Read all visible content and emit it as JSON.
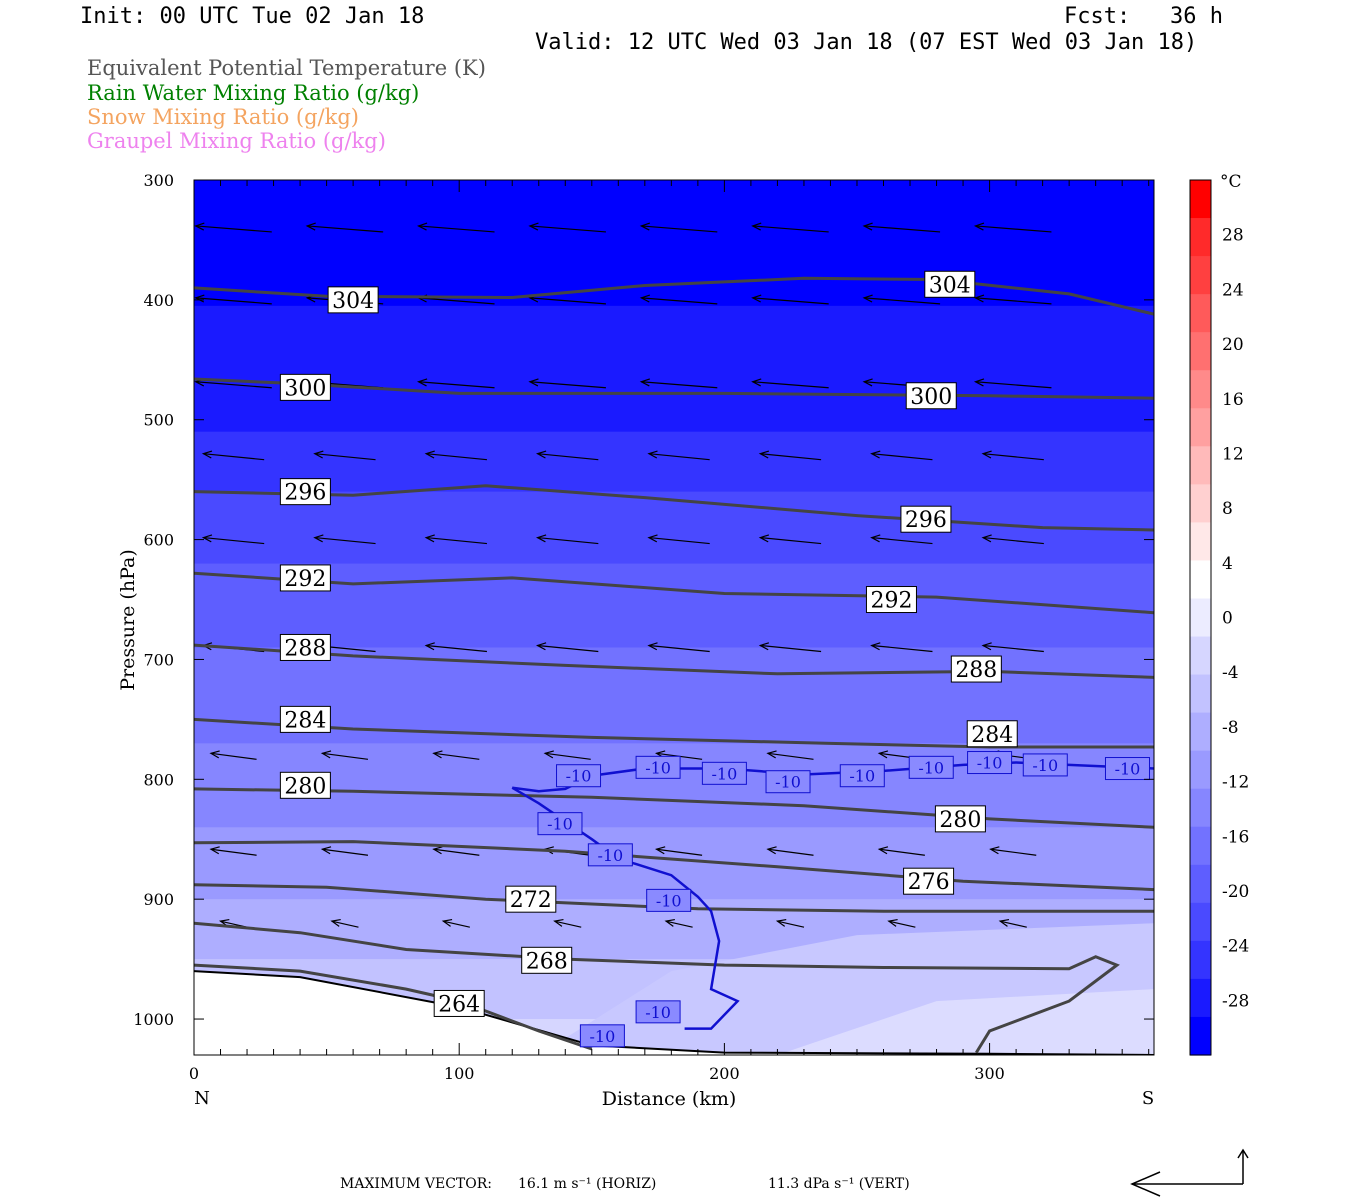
{
  "header": {
    "init": "Init: 00 UTC Tue 02 Jan 18",
    "fcst": "Fcst:   36 h",
    "valid": "Valid: 12 UTC Wed 03 Jan 18 (07 EST Wed 03 Jan 18)"
  },
  "legend": [
    {
      "text": "Equivalent Potential Temperature (K)",
      "color": "#555555"
    },
    {
      "text": "Rain Water Mixing Ratio (g/kg)",
      "color": "#008000"
    },
    {
      "text": "Snow Mixing Ratio (g/kg)",
      "color": "#f4a460"
    },
    {
      "text": "Graupel Mixing Ratio (g/kg)",
      "color": "#ee82ee"
    }
  ],
  "footer": {
    "label": "MAXIMUM VECTOR:",
    "horiz": "16.1 m s⁻¹ (HORIZ)",
    "vert": "11.3 dPa s⁻¹ (VERT)"
  },
  "chart_data": {
    "type": "cross-section",
    "xlabel": "Distance (km)",
    "ylabel": "Pressure (hPa)",
    "xlim": [
      0,
      362
    ],
    "ylim": [
      1030,
      300
    ],
    "x_ticks": [
      0,
      100,
      200,
      300
    ],
    "y_ticks": [
      300,
      400,
      500,
      600,
      700,
      800,
      900,
      1000
    ],
    "x_end_labels": {
      "left": "N",
      "right": "S"
    },
    "temperature_fill_unit": "°C",
    "colorbar_ticks": [
      28,
      24,
      20,
      16,
      12,
      8,
      4,
      0,
      -4,
      -8,
      -12,
      -16,
      -20,
      -24,
      -28
    ],
    "colorbar_range": [
      -32,
      32
    ],
    "colorbar_colors": [
      "#ff0000",
      "#ff2a2a",
      "#ff4040",
      "#ff5a5a",
      "#ff7070",
      "#ff8a8a",
      "#ffa0a0",
      "#ffbaba",
      "#ffd0d0",
      "#ffe8e8",
      "#ffffff",
      "#ececff",
      "#d6d6ff",
      "#c2c2ff",
      "#aeaeff",
      "#9a9aff",
      "#8686ff",
      "#7272ff",
      "#5e5eff",
      "#4a4aff",
      "#3434ff",
      "#1a1aff",
      "#0000ff"
    ],
    "theta_e_contours_K": [
      {
        "value": 304,
        "points": [
          [
            0,
            390
          ],
          [
            50,
            397
          ],
          [
            120,
            398
          ],
          [
            170,
            388
          ],
          [
            230,
            382
          ],
          [
            280,
            383
          ],
          [
            330,
            395
          ],
          [
            362,
            412
          ]
        ],
        "labels": [
          [
            60,
            400
          ],
          [
            285,
            387
          ]
        ]
      },
      {
        "value": 300,
        "points": [
          [
            0,
            466
          ],
          [
            40,
            470
          ],
          [
            100,
            478
          ],
          [
            200,
            478
          ],
          [
            300,
            480
          ],
          [
            362,
            482
          ]
        ],
        "labels": [
          [
            42,
            473
          ],
          [
            278,
            480
          ]
        ]
      },
      {
        "value": 296,
        "points": [
          [
            0,
            560
          ],
          [
            60,
            563
          ],
          [
            110,
            555
          ],
          [
            170,
            565
          ],
          [
            250,
            580
          ],
          [
            320,
            590
          ],
          [
            362,
            592
          ]
        ],
        "labels": [
          [
            42,
            560
          ],
          [
            276,
            583
          ]
        ]
      },
      {
        "value": 292,
        "points": [
          [
            0,
            628
          ],
          [
            60,
            637
          ],
          [
            120,
            632
          ],
          [
            200,
            645
          ],
          [
            280,
            648
          ],
          [
            362,
            661
          ]
        ],
        "labels": [
          [
            42,
            632
          ],
          [
            263,
            650
          ]
        ]
      },
      {
        "value": 288,
        "points": [
          [
            0,
            688
          ],
          [
            60,
            697
          ],
          [
            140,
            705
          ],
          [
            220,
            712
          ],
          [
            300,
            710
          ],
          [
            362,
            715
          ]
        ],
        "labels": [
          [
            42,
            690
          ],
          [
            295,
            708
          ]
        ]
      },
      {
        "value": 284,
        "points": [
          [
            0,
            750
          ],
          [
            60,
            758
          ],
          [
            150,
            765
          ],
          [
            240,
            770
          ],
          [
            300,
            773
          ],
          [
            362,
            773
          ]
        ],
        "labels": [
          [
            42,
            750
          ],
          [
            301,
            762
          ]
        ]
      },
      {
        "value": 280,
        "points": [
          [
            0,
            808
          ],
          [
            60,
            810
          ],
          [
            150,
            815
          ],
          [
            230,
            822
          ],
          [
            300,
            833
          ],
          [
            362,
            840
          ]
        ],
        "labels": [
          [
            42,
            805
          ],
          [
            289,
            833
          ]
        ]
      },
      {
        "value": 276,
        "points": [
          [
            0,
            853
          ],
          [
            60,
            852
          ],
          [
            140,
            860
          ],
          [
            220,
            873
          ],
          [
            290,
            885
          ],
          [
            362,
            892
          ]
        ],
        "labels": [
          [
            277,
            885
          ]
        ]
      },
      {
        "value": 272,
        "points": [
          [
            0,
            888
          ],
          [
            50,
            890
          ],
          [
            110,
            900
          ],
          [
            190,
            908
          ],
          [
            260,
            910
          ],
          [
            362,
            910
          ]
        ],
        "labels": [
          [
            127,
            900
          ]
        ]
      },
      {
        "value": 268,
        "points": [
          [
            0,
            920
          ],
          [
            40,
            928
          ],
          [
            80,
            942
          ],
          [
            140,
            950
          ],
          [
            200,
            955
          ],
          [
            260,
            957
          ],
          [
            330,
            958
          ],
          [
            340,
            948
          ],
          [
            348,
            955
          ],
          [
            330,
            985
          ],
          [
            300,
            1010
          ],
          [
            295,
            1028
          ]
        ],
        "labels": [
          [
            133,
            951
          ]
        ]
      },
      {
        "value": 264,
        "points": [
          [
            0,
            955
          ],
          [
            40,
            960
          ],
          [
            80,
            975
          ],
          [
            100,
            985
          ],
          [
            130,
            1010
          ],
          [
            150,
            1025
          ]
        ],
        "labels": [
          [
            100,
            987
          ]
        ]
      }
    ],
    "temperature_contour_minus10_C": {
      "value": -10,
      "points": [
        [
          120,
          807
        ],
        [
          130,
          810
        ],
        [
          140,
          808
        ],
        [
          150,
          797
        ],
        [
          170,
          791
        ],
        [
          200,
          791
        ],
        [
          230,
          796
        ],
        [
          260,
          793
        ],
        [
          290,
          788
        ],
        [
          310,
          786
        ],
        [
          330,
          788
        ],
        [
          362,
          791
        ]
      ],
      "dip": [
        [
          120,
          807
        ],
        [
          130,
          820
        ],
        [
          140,
          835
        ],
        [
          150,
          850
        ],
        [
          160,
          866
        ],
        [
          180,
          880
        ],
        [
          190,
          898
        ],
        [
          195,
          910
        ],
        [
          198,
          935
        ],
        [
          195,
          975
        ],
        [
          205,
          985
        ],
        [
          195,
          1008
        ],
        [
          185,
          1008
        ]
      ],
      "labels": [
        [
          145,
          797
        ],
        [
          175,
          790
        ],
        [
          200,
          795
        ],
        [
          224,
          802
        ],
        [
          252,
          797
        ],
        [
          278,
          790
        ],
        [
          300,
          786
        ],
        [
          321,
          788
        ],
        [
          352,
          791
        ],
        [
          138,
          837
        ],
        [
          157,
          863
        ],
        [
          179,
          901
        ],
        [
          175,
          994
        ],
        [
          154,
          1014
        ]
      ]
    },
    "surface_pressure_hPa": [
      [
        0,
        960
      ],
      [
        40,
        965
      ],
      [
        100,
        990
      ],
      [
        150,
        1022
      ],
      [
        200,
        1028
      ],
      [
        300,
        1029
      ],
      [
        362,
        1030
      ]
    ]
  }
}
